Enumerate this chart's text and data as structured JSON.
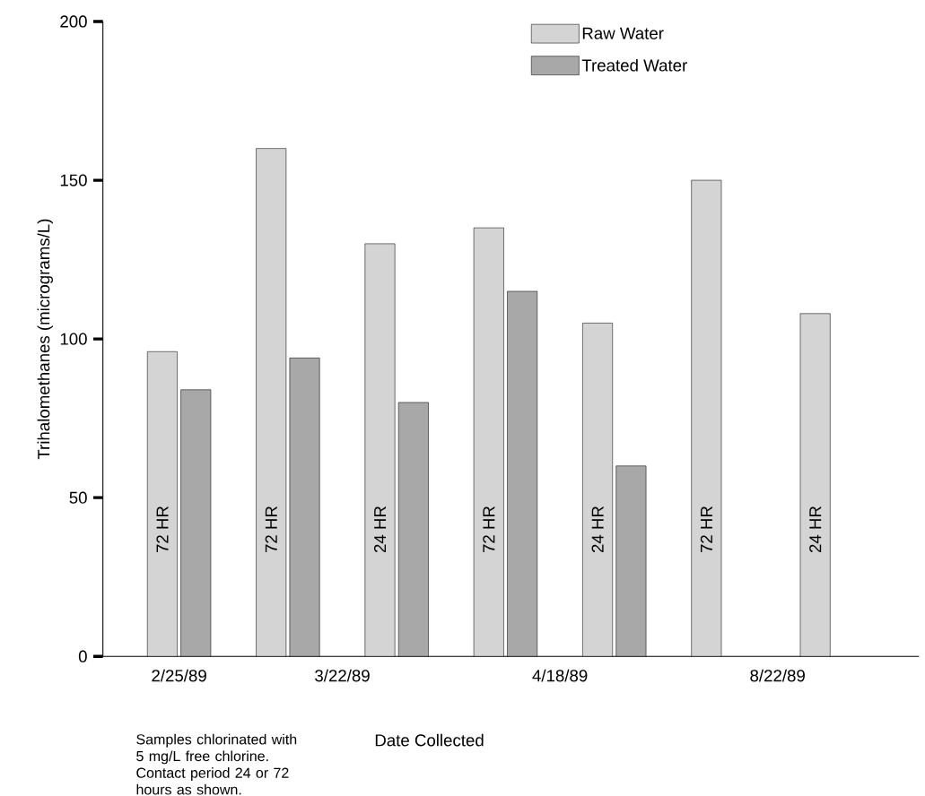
{
  "chart_data": {
    "type": "bar",
    "ylabel": "Trihalomethanes (micrograms/L)",
    "xlabel": "Date Collected",
    "categories": [
      "72 HR",
      "72 HR",
      "24 HR",
      "72 HR",
      "24 HR",
      "72 HR",
      "24 HR"
    ],
    "series": [
      {
        "name": "Raw Water",
        "color": "#d4d4d4",
        "values": [
          96,
          160,
          130,
          135,
          105,
          150,
          108
        ]
      },
      {
        "name": "Treated Water",
        "color": "#a8a8a8",
        "values": [
          84,
          94,
          80,
          115,
          60,
          null,
          null
        ]
      }
    ],
    "ylim": [
      0,
      200
    ],
    "yticks": [
      0,
      50,
      100,
      150,
      200
    ],
    "grid": false,
    "legend": "top right",
    "annotations": [
      "2/25/89",
      "3/22/89",
      "4/18/89",
      "8/22/89",
      "Samples chlorinated with 5 mg/L free chlorine. Contact period 24 or 72 hours as shown."
    ]
  }
}
